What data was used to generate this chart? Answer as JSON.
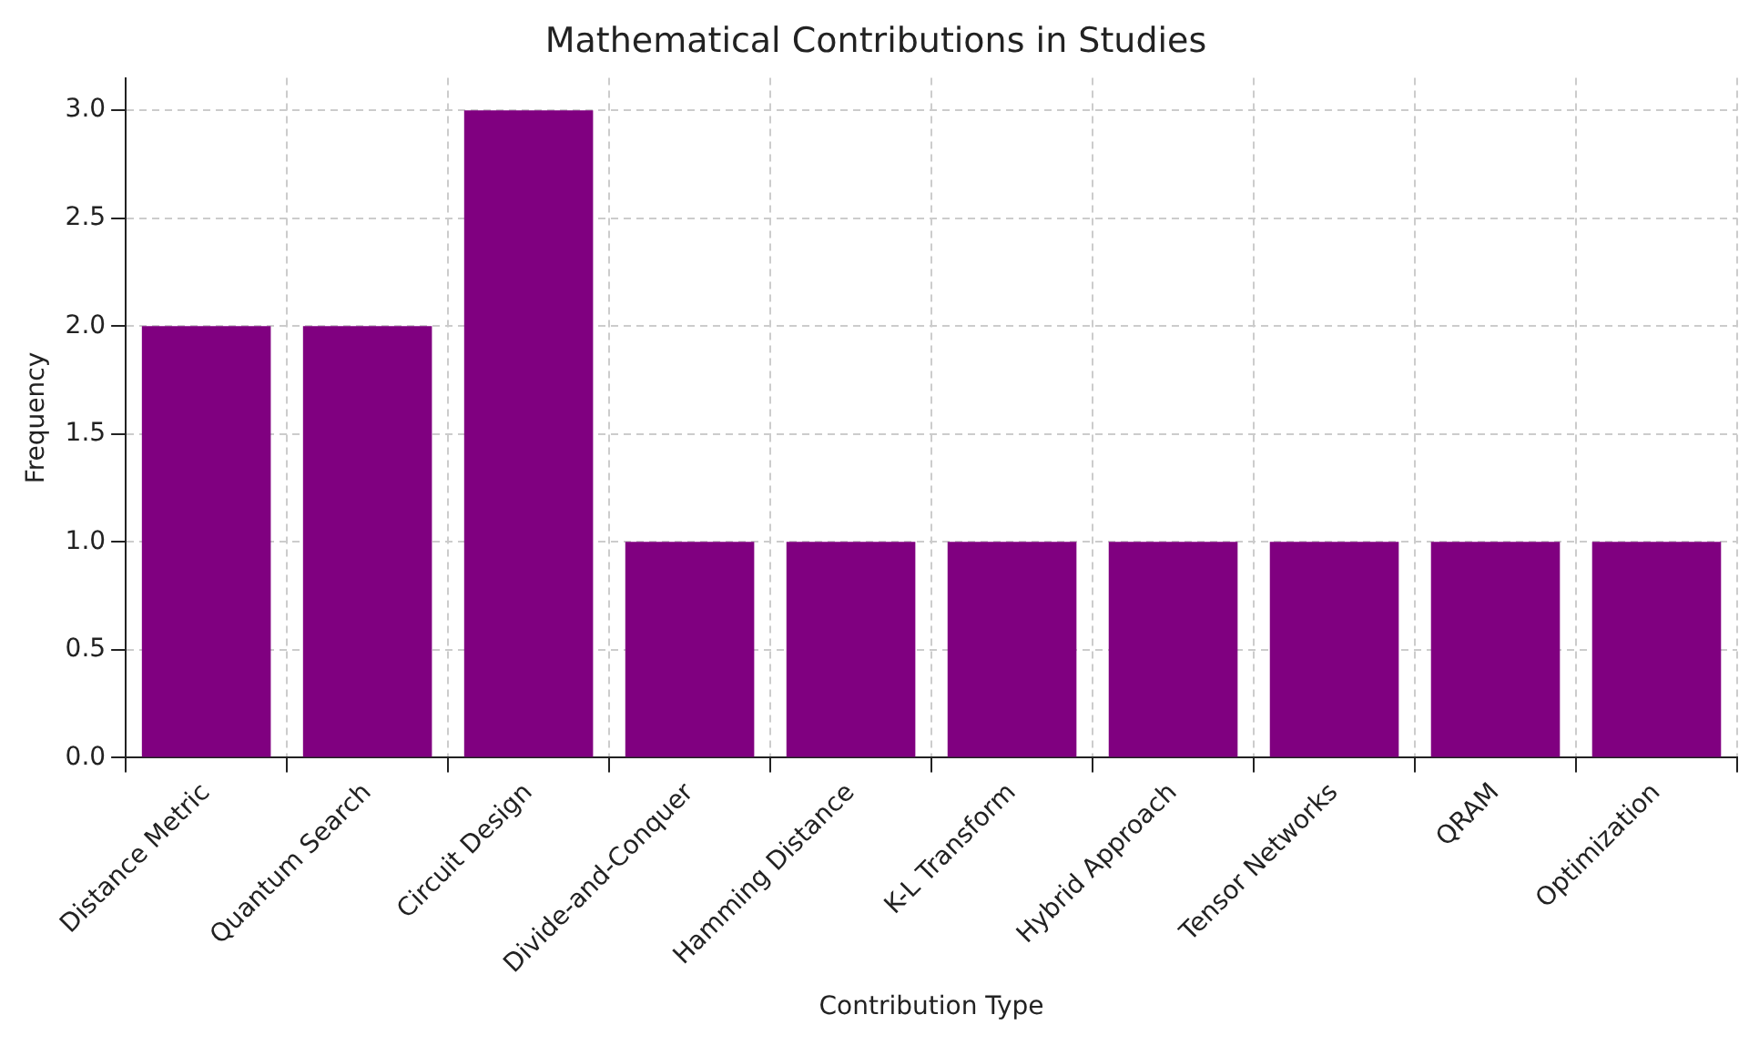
{
  "chart_data": {
    "type": "bar",
    "title": "Mathematical Contributions in Studies",
    "xlabel": "Contribution Type",
    "ylabel": "Frequency",
    "categories": [
      "Distance Metric",
      "Quantum Search",
      "Circuit Design",
      "Divide-and-Conquer",
      "Hamming Distance",
      "K-L Transform",
      "Hybrid Approach",
      "Tensor Networks",
      "QRAM",
      "Optimization"
    ],
    "values": [
      2,
      2,
      3,
      1,
      1,
      1,
      1,
      1,
      1,
      1
    ],
    "color": "#800080",
    "ylim": [
      0,
      3.15
    ],
    "yticks": [
      {
        "value": 0,
        "label": "0.0"
      },
      {
        "value": 0.5,
        "label": "0.5"
      },
      {
        "value": 1,
        "label": "1.0"
      },
      {
        "value": 1.5,
        "label": "1.5"
      },
      {
        "value": 2,
        "label": "2.0"
      },
      {
        "value": 2.5,
        "label": "2.5"
      },
      {
        "value": 3,
        "label": "3.0"
      }
    ],
    "grid": true
  }
}
